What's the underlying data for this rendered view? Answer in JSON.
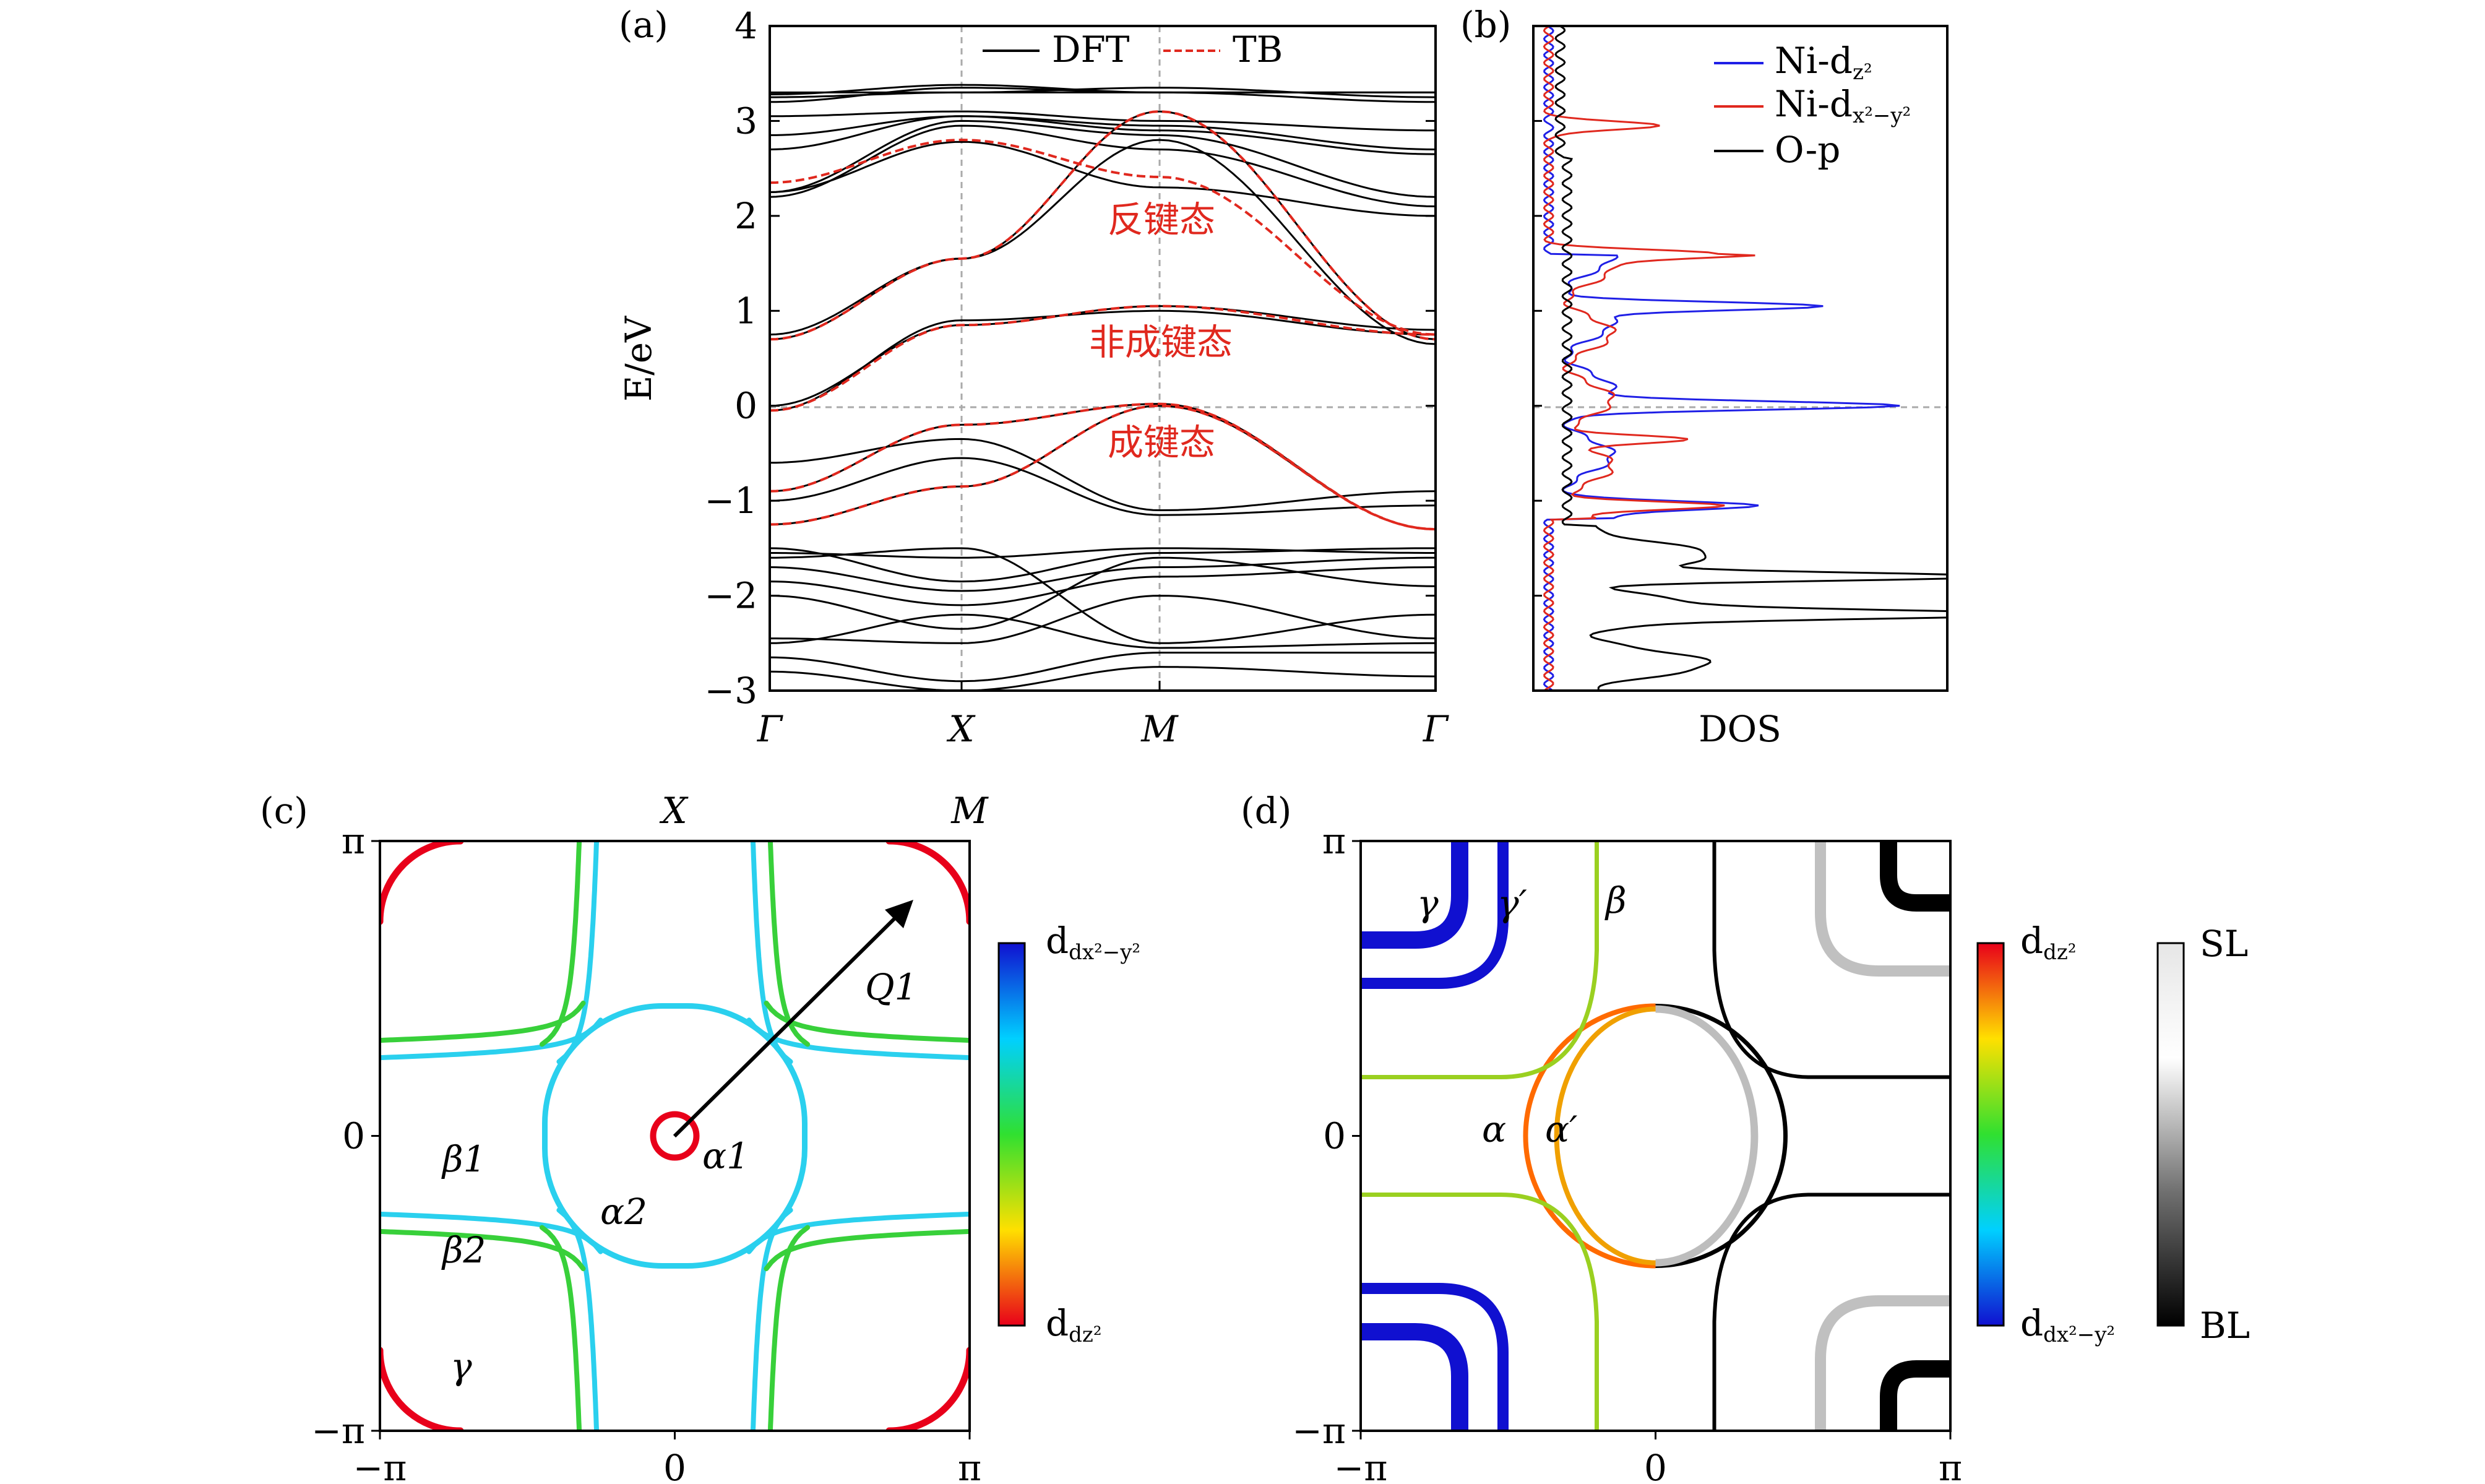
{
  "panels": {
    "a": {
      "label": "(a)"
    },
    "b": {
      "label": "(b)"
    },
    "c": {
      "label": "(c)"
    },
    "d": {
      "label": "(d)"
    }
  },
  "chart_data": [
    {
      "type": "line",
      "panel": "(a)",
      "ylabel": "E/eV",
      "ylim": [
        -3,
        4
      ],
      "yticks": [
        "4",
        "3",
        "2",
        "1",
        "0",
        "−1",
        "−2",
        "−3"
      ],
      "xticks": [
        "Γ",
        "X",
        "M",
        "Γ"
      ],
      "legend": [
        "DFT",
        "TB"
      ],
      "legend_position": "top",
      "annotations": [
        "反键态",
        "非成键态",
        "成键态"
      ],
      "x": [
        0,
        0.5,
        1.0,
        1.0,
        1.5,
        2.0,
        2.41
      ],
      "series": [
        {
          "name": "TB",
          "style": "dashed",
          "color": "#e0281e",
          "points": [
            [
              0,
              2.35
            ],
            [
              1,
              2.8
            ],
            [
              2,
              2.41
            ],
            [
              3,
              0.75
            ]
          ]
        },
        {
          "name": "TB",
          "style": "dashed",
          "color": "#e0281e",
          "points": [
            [
              0,
              0.7
            ],
            [
              1,
              1.55
            ],
            [
              2,
              3.1
            ],
            [
              3,
              0.7
            ]
          ]
        },
        {
          "name": "TB",
          "style": "dashed",
          "color": "#e0281e",
          "points": [
            [
              0,
              -0.05
            ],
            [
              1,
              0.85
            ],
            [
              2,
              1.05
            ],
            [
              3,
              0.75
            ]
          ]
        },
        {
          "name": "TB",
          "style": "dashed",
          "color": "#e0281e",
          "points": [
            [
              0,
              -0.9
            ],
            [
              1,
              -0.2
            ],
            [
              2,
              0.02
            ],
            [
              3,
              -1.3
            ]
          ]
        },
        {
          "name": "TB",
          "style": "dashed",
          "color": "#e0281e",
          "points": [
            [
              0,
              -1.25
            ],
            [
              1,
              -0.85
            ],
            [
              2,
              0.0
            ],
            [
              3,
              -1.3
            ]
          ]
        }
      ]
    },
    {
      "type": "line",
      "panel": "(b)",
      "xlabel": "DOS",
      "ylim": [
        -3,
        4
      ],
      "legend": [
        "Ni-d",
        "z²",
        "Ni-d",
        "x²−y²",
        "O-p"
      ],
      "legend_position": "top-right",
      "series": [
        {
          "name": "Ni-dz²",
          "color": "#1f1fe6",
          "peaks": [
            [
              1.05,
              1.0
            ],
            [
              0.0,
              1.35
            ],
            [
              -1.05,
              0.75
            ]
          ]
        },
        {
          "name": "Ni-dx²−y²",
          "color": "#e0281e",
          "peaks": [
            [
              2.95,
              0.5
            ],
            [
              1.6,
              0.75
            ],
            [
              -0.35,
              0.5
            ],
            [
              -1.05,
              0.65
            ]
          ]
        },
        {
          "name": "O-p",
          "color": "#000000",
          "peaks": [
            [
              -1.8,
              1.7
            ],
            [
              -2.2,
              1.5
            ]
          ]
        }
      ]
    },
    {
      "type": "contour",
      "panel": "(c)",
      "xticks": [
        "−π",
        "0",
        "π"
      ],
      "yticks": [
        "π",
        "0",
        "−π"
      ],
      "top_labels": [
        "X",
        "M"
      ],
      "colorbar": {
        "top": "dx²−y²",
        "bottom": "dz²"
      },
      "annotations": [
        "Q1",
        "α1",
        "α2",
        "β1",
        "β2",
        "γ"
      ]
    },
    {
      "type": "contour",
      "panel": "(d)",
      "xticks": [
        "−π",
        "0",
        "π"
      ],
      "yticks": [
        "π",
        "0",
        "−π"
      ],
      "colorbar1": {
        "top": "dz²",
        "bottom": "dx²−y²"
      },
      "colorbar2": {
        "top": "SL",
        "bottom": "BL"
      },
      "annotations": [
        "γ",
        "γ′",
        "β",
        "α",
        "α′"
      ]
    }
  ]
}
